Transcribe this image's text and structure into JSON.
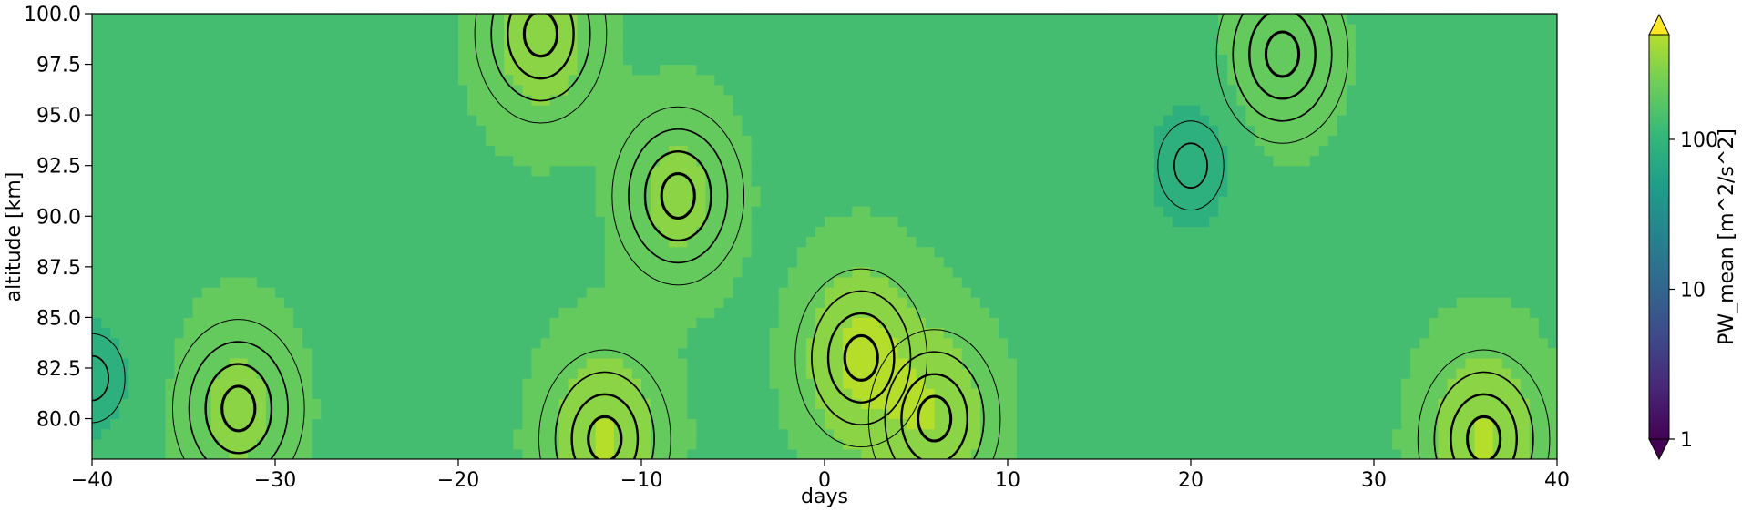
{
  "chart_data": {
    "type": "heatmap",
    "subtype": "filled-contour",
    "xlabel": "days",
    "ylabel": "altitude [km]",
    "xlim": [
      -40,
      40
    ],
    "ylim": [
      78,
      100
    ],
    "xticks": [
      -40,
      -30,
      -20,
      -10,
      0,
      10,
      20,
      30,
      40
    ],
    "xtick_labels": [
      "−40",
      "−30",
      "−20",
      "−10",
      "0",
      "10",
      "20",
      "30",
      "40"
    ],
    "yticks": [
      80.0,
      82.5,
      85.0,
      87.5,
      90.0,
      92.5,
      95.0,
      97.5,
      100.0
    ],
    "ytick_labels": [
      "80.0",
      "82.5",
      "85.0",
      "87.5",
      "90.0",
      "92.5",
      "95.0",
      "97.5",
      "100.0"
    ],
    "colorbar": {
      "label": "PW_mean [m^2/s^2]",
      "scale": "log",
      "range": [
        1,
        500
      ],
      "ticks": [
        1,
        10,
        100
      ],
      "tick_labels": [
        "1",
        "10",
        "100"
      ],
      "extend": "both",
      "colormap": "viridis"
    },
    "features": [
      {
        "day": -32,
        "altitude": 80.5,
        "value": 300,
        "description": "local maximum"
      },
      {
        "day": -15.5,
        "altitude": 99,
        "value": 350,
        "description": "local maximum"
      },
      {
        "day": -8,
        "altitude": 91,
        "value": 300,
        "description": "local maximum"
      },
      {
        "day": 2,
        "altitude": 83,
        "value": 450,
        "description": "local maximum"
      },
      {
        "day": 6,
        "altitude": 80,
        "value": 380,
        "description": "local maximum"
      },
      {
        "day": -12,
        "altitude": 79,
        "value": 420,
        "description": "local maximum"
      },
      {
        "day": 36,
        "altitude": 79,
        "value": 420,
        "description": "local maximum"
      },
      {
        "day": 25,
        "altitude": 98,
        "value": 250,
        "description": "local maximum"
      },
      {
        "day": 20,
        "altitude": 92.5,
        "value": 70,
        "description": "local minimum"
      },
      {
        "day": -40,
        "altitude": 82,
        "value": 80,
        "description": "local minimum"
      }
    ],
    "grid": false
  }
}
